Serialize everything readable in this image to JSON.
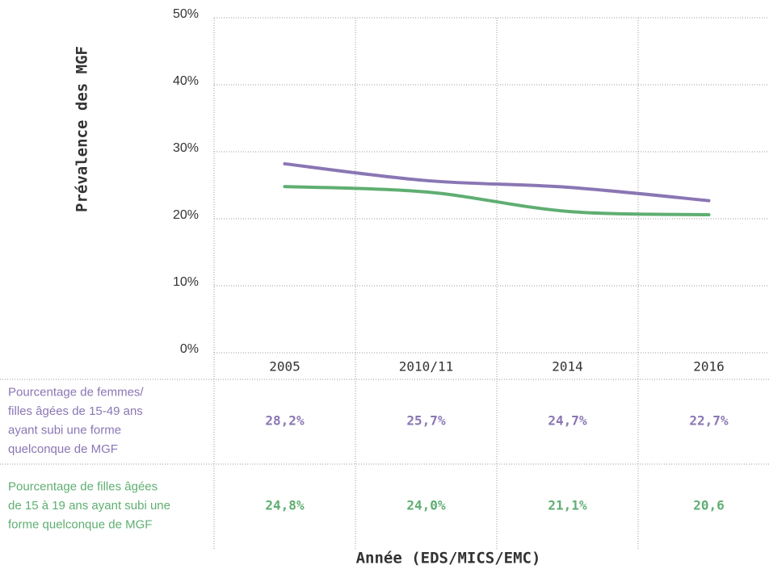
{
  "chart_data": {
    "type": "line",
    "ylabel": "Prévalence des MGF",
    "xlabel": "Année (EDS/MICS/EMC)",
    "categories": [
      "2005",
      "2010/11",
      "2014",
      "2016"
    ],
    "ylim": [
      0,
      50
    ],
    "yticks": [
      {
        "value": 0,
        "label": "0%"
      },
      {
        "value": 10,
        "label": "10%"
      },
      {
        "value": 20,
        "label": "20%"
      },
      {
        "value": 30,
        "label": "30%"
      },
      {
        "value": 40,
        "label": "40%"
      },
      {
        "value": 50,
        "label": "50%"
      }
    ],
    "grid": true,
    "series": [
      {
        "label_lines": [
          "Pourcentage de femmes/",
          "filles âgées de 15-49 ans",
          "ayant subi une forme",
          "quelconque de MGF"
        ],
        "color": "#8a76b4",
        "values": [
          28.2,
          25.7,
          24.7,
          22.7
        ],
        "value_labels": [
          "28,2%",
          "25,7%",
          "24,7%",
          "22,7%"
        ]
      },
      {
        "label_lines": [
          "Pourcentage de filles âgées",
          "de 15 à 19 ans ayant subi une",
          "forme quelconque de MGF"
        ],
        "color": "#5fae72",
        "values": [
          24.8,
          24.0,
          21.1,
          20.6
        ],
        "value_labels": [
          "24,8%",
          "24,0%",
          "21,1%",
          "20,6"
        ]
      }
    ]
  }
}
